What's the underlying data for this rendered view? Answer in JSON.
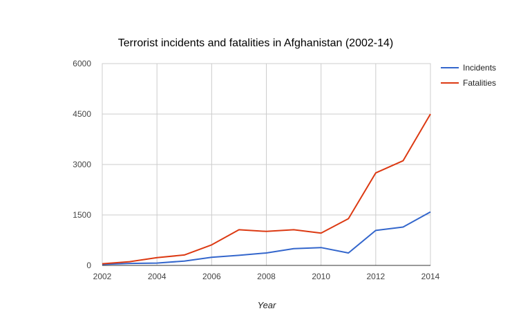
{
  "chart_data": {
    "type": "line",
    "title": "Terrorist incidents and fatalities in Afghanistan (2002-14)",
    "xlabel": "Year",
    "ylabel": "",
    "x": [
      2002,
      2003,
      2004,
      2005,
      2006,
      2007,
      2008,
      2009,
      2010,
      2011,
      2012,
      2013,
      2014
    ],
    "xlim": [
      2002,
      2014
    ],
    "ylim": [
      0,
      6000
    ],
    "x_ticks": [
      "2002",
      "2004",
      "2006",
      "2008",
      "2010",
      "2012",
      "2014"
    ],
    "y_ticks": [
      "0",
      "1500",
      "3000",
      "4500",
      "6000"
    ],
    "grid": true,
    "legend_position": "right",
    "series": [
      {
        "name": "Incidents",
        "color": "#3366cc",
        "values": [
          30,
          60,
          70,
          130,
          240,
          300,
          370,
          500,
          530,
          370,
          1040,
          1140,
          1590
        ]
      },
      {
        "name": "Fatalities",
        "color": "#dc3912",
        "values": [
          50,
          110,
          230,
          310,
          610,
          1060,
          1010,
          1060,
          960,
          1390,
          2750,
          3110,
          4500
        ]
      }
    ]
  }
}
